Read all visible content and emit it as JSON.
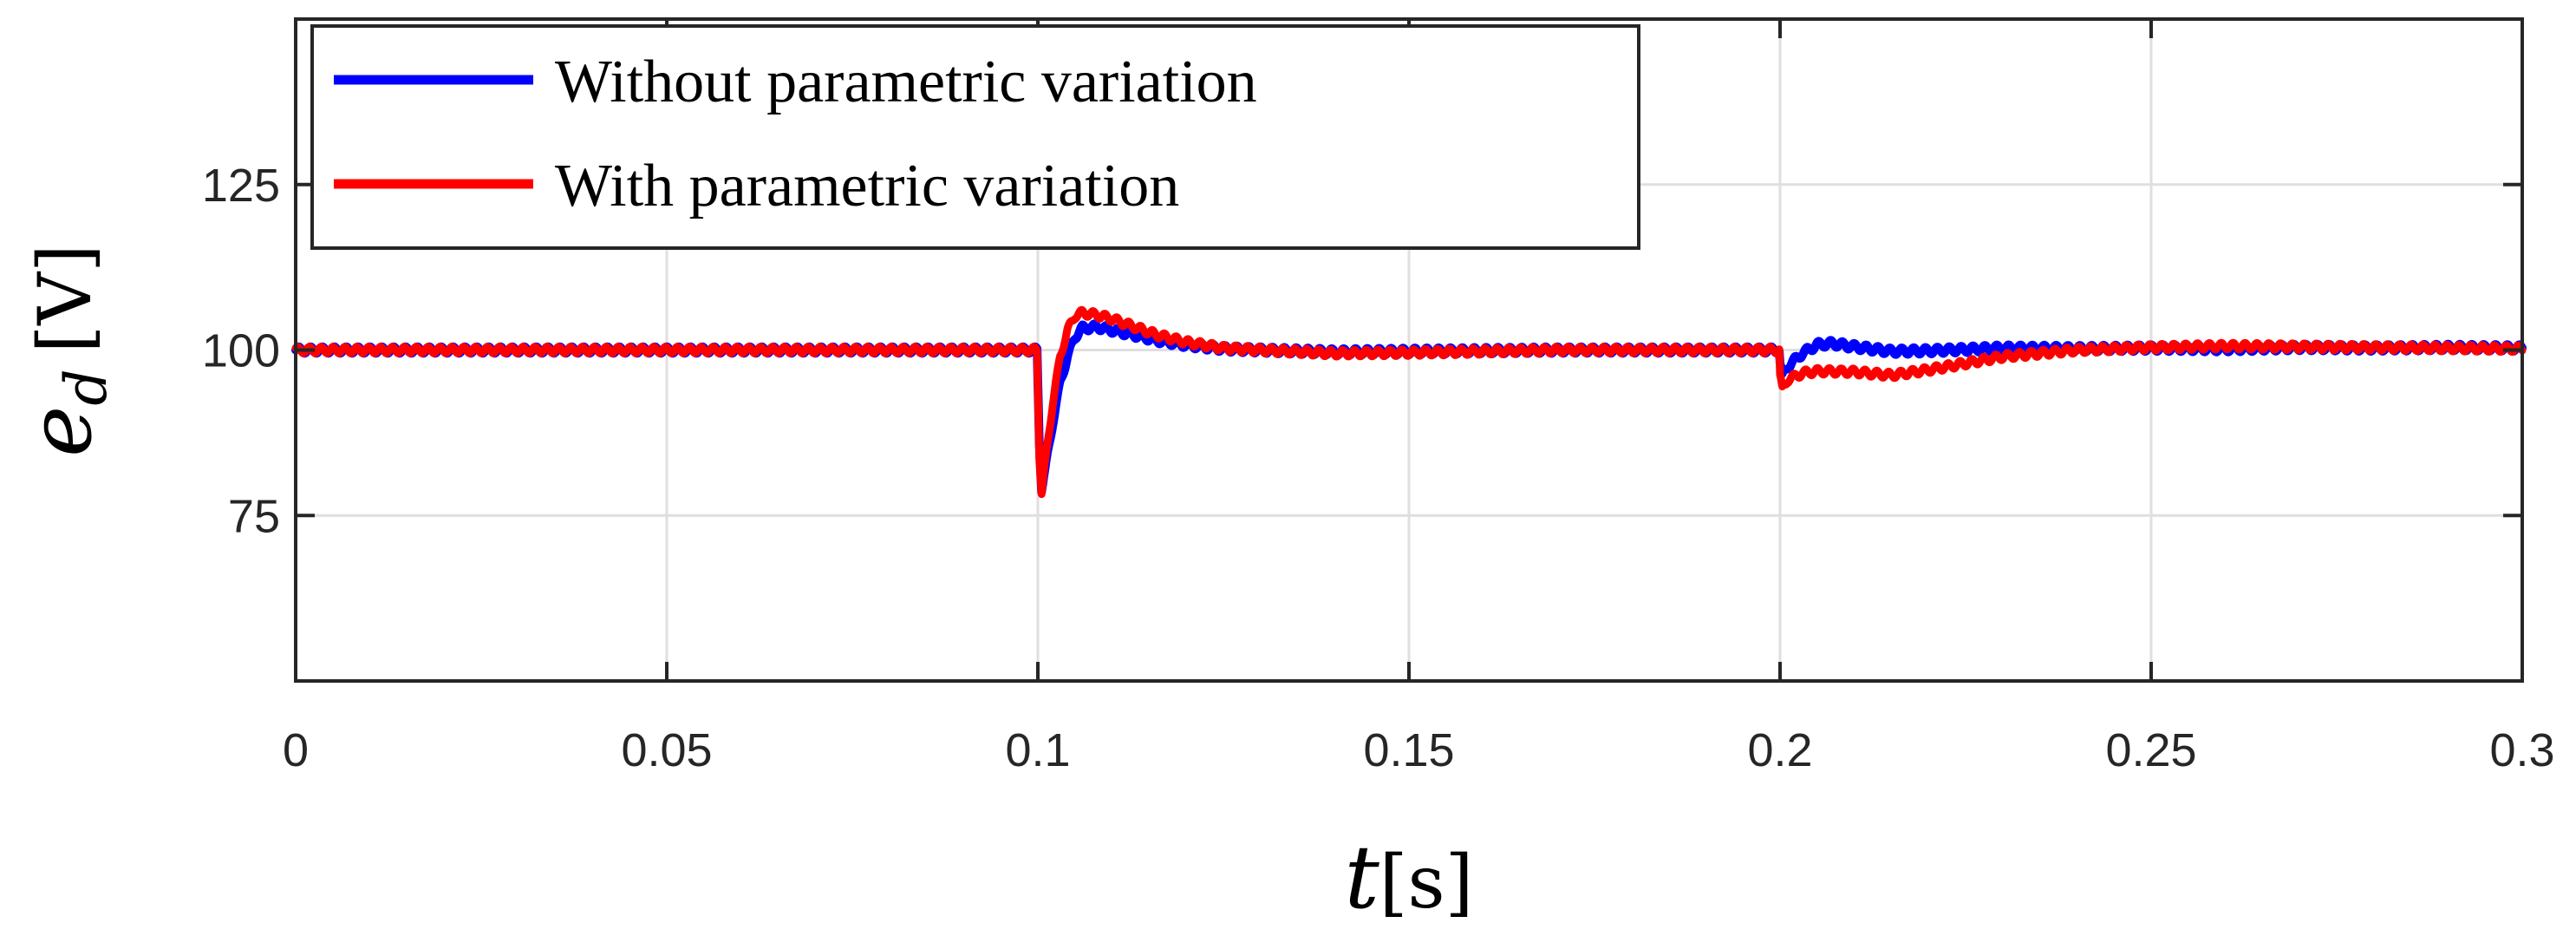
{
  "chart_data": {
    "type": "line",
    "title": "",
    "xlabel": {
      "symbol": "t",
      "unit": "[s]"
    },
    "ylabel": {
      "symbol": "e",
      "subscript": "d",
      "unit": "[V]"
    },
    "xlim": [
      0,
      0.3
    ],
    "ylim": [
      50,
      150
    ],
    "grid": true,
    "legend_position": "top-left",
    "x_ticks": [
      0,
      0.05,
      0.1,
      0.15,
      0.2,
      0.25,
      0.3
    ],
    "x_tick_labels": [
      "0",
      "0.05",
      "0.1",
      "0.15",
      "0.2",
      "0.25",
      "0.3"
    ],
    "y_ticks": [
      75,
      100,
      125
    ],
    "y_tick_labels": [
      "75",
      "100",
      "125"
    ],
    "series": [
      {
        "name": "Without parametric variation",
        "color": "#0000ff",
        "ripple": 0.5,
        "x": [
          0,
          0.0999,
          0.1,
          0.1002,
          0.1005,
          0.101,
          0.102,
          0.103,
          0.104,
          0.105,
          0.106,
          0.108,
          0.11,
          0.113,
          0.116,
          0.12,
          0.125,
          0.13,
          0.14,
          0.15,
          0.16,
          0.17,
          0.18,
          0.19,
          0.1999,
          0.2,
          0.2003,
          0.201,
          0.203,
          0.205,
          0.207,
          0.21,
          0.215,
          0.22,
          0.23,
          0.24,
          0.25,
          0.26,
          0.27,
          0.28,
          0.29,
          0.3
        ],
        "y": [
          100,
          100,
          95,
          86,
          79,
          82,
          89,
          95,
          99,
          102,
          103.3,
          103.5,
          103,
          102.3,
          101.5,
          100.8,
          100.2,
          100,
          99.7,
          99.8,
          99.9,
          100,
          100,
          100,
          100,
          98,
          96,
          97.5,
          99.5,
          100.8,
          101,
          100.5,
          99.8,
          99.9,
          100.3,
          100.2,
          100.3,
          100.2,
          100.4,
          100.3,
          100.4,
          100.3
        ]
      },
      {
        "name": "With parametric variation",
        "color": "#ff0000",
        "ripple": 0.5,
        "x": [
          0,
          0.0999,
          0.1,
          0.1002,
          0.1005,
          0.101,
          0.102,
          0.103,
          0.104,
          0.105,
          0.106,
          0.108,
          0.11,
          0.113,
          0.116,
          0.12,
          0.125,
          0.13,
          0.14,
          0.15,
          0.16,
          0.17,
          0.18,
          0.19,
          0.1999,
          0.2,
          0.2003,
          0.201,
          0.203,
          0.205,
          0.21,
          0.215,
          0.22,
          0.225,
          0.23,
          0.235,
          0.24,
          0.25,
          0.26,
          0.27,
          0.28,
          0.29,
          0.3
        ],
        "y": [
          100,
          100,
          94,
          84,
          78.5,
          83,
          92,
          99,
          103,
          105.2,
          105.6,
          105.3,
          104.7,
          103.5,
          102.3,
          101.2,
          100.3,
          100,
          99.5,
          99.6,
          99.8,
          100,
          100,
          100,
          100,
          96,
          94,
          95.5,
          96.5,
          96.8,
          96.7,
          96.2,
          97,
          98,
          99,
          99.5,
          100,
          100.4,
          100.6,
          100.5,
          100.4,
          100.3,
          100.2
        ]
      }
    ]
  }
}
